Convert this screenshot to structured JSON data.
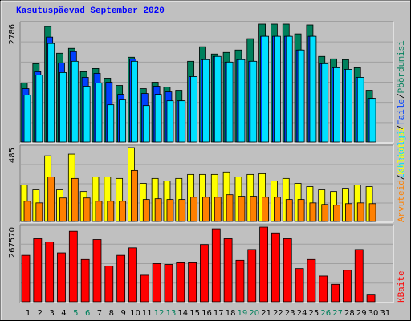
{
  "chart_data": [
    {
      "type": "bar",
      "title": "Kasutuspäevad September 2020",
      "separator": "/",
      "ylim": [
        0,
        2786
      ],
      "yticks": [
        2786
      ],
      "grid": true,
      "series": [
        {
          "name": "Pöördumisi",
          "color": "#00805c",
          "values": [
            1402,
            1857,
            2729,
            2103,
            2217,
            1668,
            1743,
            1516,
            1345,
            2009,
            1270,
            1421,
            1308,
            1232,
            1914,
            2255,
            2085,
            2122,
            2179,
            2445,
            2786,
            2786,
            2786,
            2558,
            2767,
            2028,
            1971,
            1952,
            1762,
            1232,
            null
          ]
        },
        {
          "name": "Faile",
          "color": "#0040ff",
          "values": [
            1270,
            1668,
            2482,
            1876,
            2141,
            1535,
            1630,
            1421,
            1137,
            1971,
            1156,
            1327,
            1194,
            985,
            1554,
            1952,
            2028,
            1895,
            1952,
            1914,
            2501,
            2501,
            2501,
            2179,
            2501,
            1857,
            1762,
            1724,
            1535,
            1042,
            null
          ]
        },
        {
          "name": "Lehekülgi",
          "color": "#00e0ff",
          "values": [
            1118,
            1592,
            2331,
            1649,
            1914,
            1327,
            1402,
            891,
            1023,
            1914,
            872,
            1137,
            985,
            985,
            1554,
            1952,
            2028,
            1895,
            1952,
            1914,
            2501,
            2501,
            2501,
            2179,
            2501,
            1857,
            1762,
            1724,
            1535,
            1042,
            null
          ]
        }
      ]
    },
    {
      "type": "bar",
      "separator": "/",
      "ylim": [
        0,
        485
      ],
      "yticks": [
        485
      ],
      "grid": true,
      "series": [
        {
          "name": "Külastusi",
          "color": "#ffff00",
          "values": [
            242,
            211,
            432,
            211,
            443,
            200,
            295,
            295,
            285,
            485,
            253,
            285,
            269,
            285,
            311,
            311,
            311,
            327,
            295,
            311,
            316,
            269,
            285,
            253,
            232,
            211,
            200,
            221,
            242,
            232,
            null
          ]
        },
        {
          "name": "Arvuteid",
          "color": "#ff8000",
          "values": [
            137,
            126,
            295,
            158,
            285,
            158,
            137,
            137,
            137,
            337,
            148,
            153,
            148,
            148,
            163,
            163,
            163,
            179,
            169,
            169,
            163,
            163,
            148,
            148,
            126,
            116,
            111,
            121,
            126,
            121,
            null
          ]
        }
      ]
    },
    {
      "type": "bar",
      "ylim": [
        0,
        267570
      ],
      "yticks": [
        267570
      ],
      "grid": true,
      "categories": [
        "1",
        "2",
        "3",
        "4",
        "5",
        "6",
        "7",
        "8",
        "9",
        "10",
        "11",
        "12",
        "13",
        "14",
        "15",
        "16",
        "17",
        "18",
        "19",
        "20",
        "21",
        "22",
        "23",
        "24",
        "25",
        "26",
        "27",
        "28",
        "29",
        "30",
        "31"
      ],
      "category_colors": [
        "#000000",
        "#000000",
        "#000000",
        "#000000",
        "#00805c",
        "#00805c",
        "#000000",
        "#000000",
        "#000000",
        "#000000",
        "#000000",
        "#00805c",
        "#00805c",
        "#000000",
        "#000000",
        "#000000",
        "#000000",
        "#000000",
        "#00805c",
        "#00805c",
        "#000000",
        "#000000",
        "#000000",
        "#000000",
        "#000000",
        "#00805c",
        "#00805c",
        "#000000",
        "#000000",
        "#000000",
        "#000000"
      ],
      "series": [
        {
          "name": "KBaite",
          "color": "#ff0000",
          "values": [
            167580,
            226380,
            214620,
            176400,
            252840,
            152880,
            223440,
            129360,
            167580,
            194040,
            97020,
            138180,
            135240,
            141120,
            141120,
            205800,
            261660,
            226380,
            149940,
            188160,
            267570,
            246960,
            226380,
            120540,
            152880,
            94080,
            64680,
            114660,
            188160,
            29400,
            null
          ]
        }
      ]
    }
  ]
}
